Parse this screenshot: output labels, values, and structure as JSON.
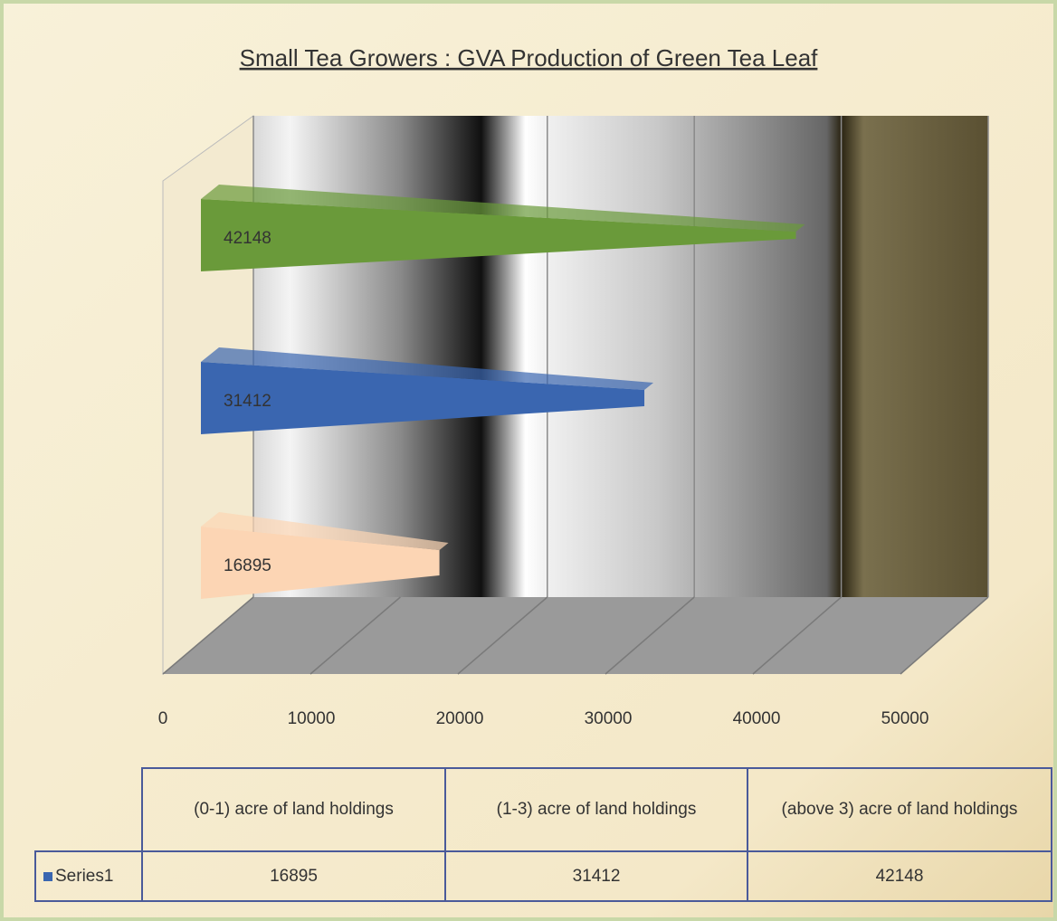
{
  "chart_data": {
    "type": "bar3d_horizontal",
    "title": "Small Tea Growers : GVA Production of Green Tea Leaf",
    "categories": [
      "(0-1) acre of land holdings",
      "(1-3) acre of land holdings",
      "(above 3) acre of land holdings"
    ],
    "series": [
      {
        "name": "Series1",
        "color": "#3a66b0",
        "values": [
          16895,
          31412,
          42148
        ],
        "point_colors": [
          "#fcd5b4",
          "#3a66b0",
          "#6a9a3a"
        ]
      }
    ],
    "xlim": [
      0,
      50000
    ],
    "xticks": [
      0,
      10000,
      20000,
      30000,
      40000,
      50000
    ],
    "grid": true,
    "data_table": true
  }
}
